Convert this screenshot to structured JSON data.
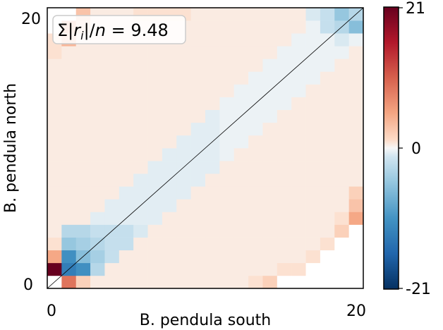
{
  "chart_data": {
    "type": "heatmap",
    "xlabel": "B. pendula south",
    "ylabel": "B. pendula north",
    "x_ticks": [
      "0",
      "20"
    ],
    "y_ticks": [
      "0",
      "20"
    ],
    "grid_size": 22,
    "annotation": {
      "prefix": "Σ|",
      "var": "r",
      "sub": "i",
      "mid": "|/",
      "n": "n",
      "suffix": " = 9.48"
    },
    "colorbar": {
      "ticks": [
        "21",
        "0",
        "-21"
      ],
      "min": -21,
      "max": 21
    },
    "diagonal_line": true,
    "colors": {
      "pos": "#67001f",
      "neg": "#053061",
      "mid": "#f7f7f7"
    },
    "nonzero_cells": [
      {
        "x": 0,
        "y": 1,
        "v": 21
      },
      {
        "x": 1,
        "y": 0,
        "v": 9
      },
      {
        "x": 1,
        "y": 1,
        "v": -13
      },
      {
        "x": 1,
        "y": 2,
        "v": -11
      },
      {
        "x": 0,
        "y": 2,
        "v": 5
      },
      {
        "x": 2,
        "y": 1,
        "v": -11
      },
      {
        "x": 2,
        "y": 2,
        "v": -6
      },
      {
        "x": 2,
        "y": 3,
        "v": -4
      },
      {
        "x": 1,
        "y": 3,
        "v": -5
      },
      {
        "x": 0,
        "y": 3,
        "v": 1
      },
      {
        "x": 3,
        "y": 1,
        "v": -3
      },
      {
        "x": 3,
        "y": 2,
        "v": -4
      },
      {
        "x": 3,
        "y": 3,
        "v": -3
      },
      {
        "x": 2,
        "y": 0,
        "v": 2
      },
      {
        "x": 1,
        "y": 4,
        "v": -3
      },
      {
        "x": 2,
        "y": 4,
        "v": -3
      },
      {
        "x": 3,
        "y": 4,
        "v": -2
      },
      {
        "x": 4,
        "y": 2,
        "v": -2
      },
      {
        "x": 4,
        "y": 3,
        "v": -2
      },
      {
        "x": 4,
        "y": 4,
        "v": -2
      },
      {
        "x": 5,
        "y": 3,
        "v": -2
      },
      {
        "x": 5,
        "y": 4,
        "v": -2
      },
      {
        "x": 6,
        "y": 4,
        "v": -1
      },
      {
        "x": 0,
        "y": 18,
        "v": 1
      },
      {
        "x": 1,
        "y": 19,
        "v": 4
      },
      {
        "x": 1,
        "y": 20,
        "v": 6
      },
      {
        "x": 2,
        "y": 21,
        "v": 3
      },
      {
        "x": 2,
        "y": 20,
        "v": 2
      },
      {
        "x": 0,
        "y": 19,
        "v": 1
      },
      {
        "x": 6,
        "y": 21,
        "v": 1
      },
      {
        "x": 7,
        "y": 21,
        "v": 1
      },
      {
        "x": 8,
        "y": 21,
        "v": 1
      },
      {
        "x": 9,
        "y": 21,
        "v": 1
      },
      {
        "x": 20,
        "y": 21,
        "v": -5
      },
      {
        "x": 21,
        "y": 21,
        "v": -3
      },
      {
        "x": 21,
        "y": 20,
        "v": -6
      },
      {
        "x": 20,
        "y": 20,
        "v": -3
      },
      {
        "x": 19,
        "y": 20,
        "v": -2
      },
      {
        "x": 19,
        "y": 21,
        "v": -2
      },
      {
        "x": 18,
        "y": 21,
        "v": -1
      },
      {
        "x": 20,
        "y": 19,
        "v": -1
      },
      {
        "x": 21,
        "y": 5,
        "v": 5
      },
      {
        "x": 21,
        "y": 6,
        "v": 3
      },
      {
        "x": 21,
        "y": 7,
        "v": 2
      },
      {
        "x": 20,
        "y": 4,
        "v": 2
      },
      {
        "x": 20,
        "y": 5,
        "v": 1
      },
      {
        "x": 19,
        "y": 3,
        "v": 1
      },
      {
        "x": 18,
        "y": 2,
        "v": 1
      },
      {
        "x": 17,
        "y": 1,
        "v": 1
      },
      {
        "x": 16,
        "y": 1,
        "v": 1
      },
      {
        "x": 15,
        "y": 0,
        "v": 2
      },
      {
        "x": 14,
        "y": 0,
        "v": 1
      }
    ],
    "masked_cells": [
      {
        "x": 0,
        "y": 0
      },
      {
        "x": 0,
        "y": 20
      },
      {
        "x": 0,
        "y": 21
      },
      {
        "x": 1,
        "y": 21
      },
      {
        "x": 16,
        "y": 0
      },
      {
        "x": 17,
        "y": 0
      },
      {
        "x": 18,
        "y": 0
      },
      {
        "x": 19,
        "y": 0
      },
      {
        "x": 20,
        "y": 0
      },
      {
        "x": 21,
        "y": 0
      },
      {
        "x": 18,
        "y": 1
      },
      {
        "x": 19,
        "y": 1
      },
      {
        "x": 20,
        "y": 1
      },
      {
        "x": 21,
        "y": 1
      },
      {
        "x": 19,
        "y": 2
      },
      {
        "x": 20,
        "y": 2
      },
      {
        "x": 21,
        "y": 2
      },
      {
        "x": 20,
        "y": 3
      },
      {
        "x": 21,
        "y": 3
      },
      {
        "x": 21,
        "y": 4
      }
    ]
  }
}
